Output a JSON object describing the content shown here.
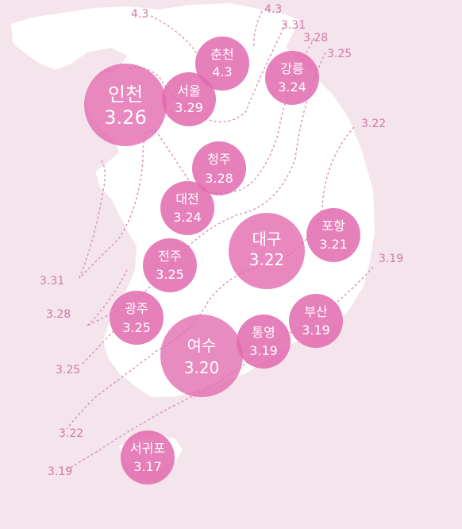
{
  "colors": {
    "background": "#f4e4ec",
    "land": "#ffffff",
    "bubble": "#e26aae",
    "contour": "#d889b8",
    "contour_label": "#d07aa8"
  },
  "cities": [
    {
      "key": "incheon",
      "name": "인천",
      "value": "3.26"
    },
    {
      "key": "seoul",
      "name": "서울",
      "value": "3.29"
    },
    {
      "key": "chuncheon",
      "name": "춘천",
      "value": "4.3"
    },
    {
      "key": "gangneung",
      "name": "강릉",
      "value": "3.24"
    },
    {
      "key": "cheongju",
      "name": "청주",
      "value": "3.28"
    },
    {
      "key": "daejeon",
      "name": "대전",
      "value": "3.24"
    },
    {
      "key": "daegu",
      "name": "대구",
      "value": "3.22"
    },
    {
      "key": "pohang",
      "name": "포항",
      "value": "3.21"
    },
    {
      "key": "jeonju",
      "name": "전주",
      "value": "3.25"
    },
    {
      "key": "gwangju",
      "name": "광주",
      "value": "3.25"
    },
    {
      "key": "yeosu",
      "name": "여수",
      "value": "3.20"
    },
    {
      "key": "tongyeong",
      "name": "통영",
      "value": "3.19"
    },
    {
      "key": "busan",
      "name": "부산",
      "value": "3.19"
    },
    {
      "key": "seogwipo",
      "name": "서귀포",
      "value": "3.17"
    }
  ],
  "contour_labels": [
    {
      "key": "c1",
      "text": "4.3"
    },
    {
      "key": "c2",
      "text": "4.3"
    },
    {
      "key": "c3",
      "text": "3.31"
    },
    {
      "key": "c4",
      "text": "3.28"
    },
    {
      "key": "c5",
      "text": "3.25"
    },
    {
      "key": "c6",
      "text": "3.22"
    },
    {
      "key": "c7",
      "text": "3.19"
    },
    {
      "key": "c8",
      "text": "3.31"
    },
    {
      "key": "c9",
      "text": "3.28"
    },
    {
      "key": "c10",
      "text": "3.25"
    },
    {
      "key": "c11",
      "text": "3.22"
    },
    {
      "key": "c12",
      "text": "3.19"
    }
  ]
}
